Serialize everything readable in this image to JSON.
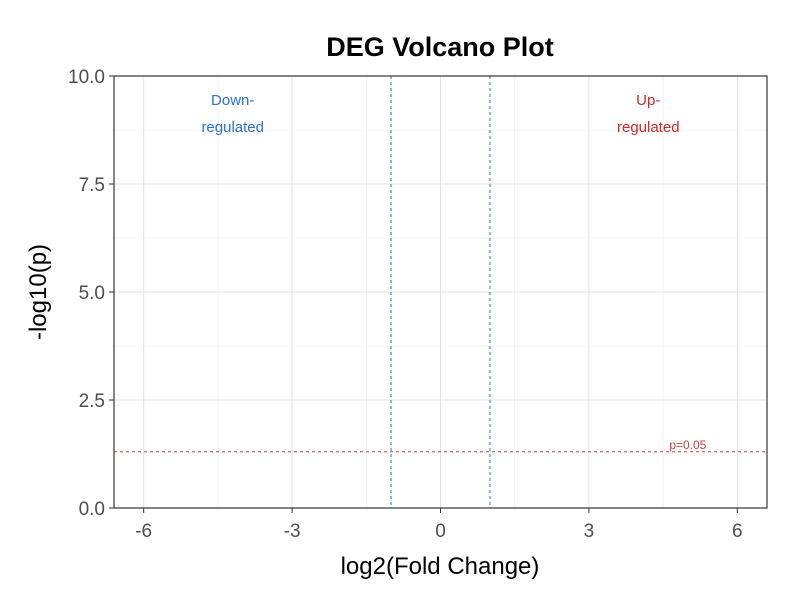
{
  "chart_data": {
    "type": "scatter",
    "title": "DEG Volcano Plot",
    "xlabel": "log2(Fold Change)",
    "ylabel": "-log10(p)",
    "xlim": [
      -6.6,
      6.6
    ],
    "ylim": [
      0,
      10
    ],
    "x_ticks": [
      -6,
      -3,
      0,
      3,
      6
    ],
    "x_tick_labels": [
      "-6",
      "-3",
      "0",
      "3",
      "6"
    ],
    "y_ticks": [
      0,
      2.5,
      5,
      7.5,
      10
    ],
    "y_tick_labels": [
      "0.0",
      "2.5",
      "5.0",
      "7.5",
      "10.0"
    ],
    "grid": true,
    "series": [],
    "thresholds": {
      "fold_change_x": [
        -1,
        1
      ],
      "fold_change_color": "#2a6fdb",
      "pvalue_y": 1.301,
      "pvalue_color": "#c84040",
      "pvalue_label": "p=0.05"
    },
    "annotations": [
      {
        "x": -4.2,
        "y": 9.1,
        "lines": [
          "Down-",
          "regulated"
        ],
        "color": "#2a6fdb"
      },
      {
        "x": 4.2,
        "y": 9.1,
        "lines": [
          "Up-",
          "regulated"
        ],
        "color": "#d62728"
      }
    ]
  }
}
